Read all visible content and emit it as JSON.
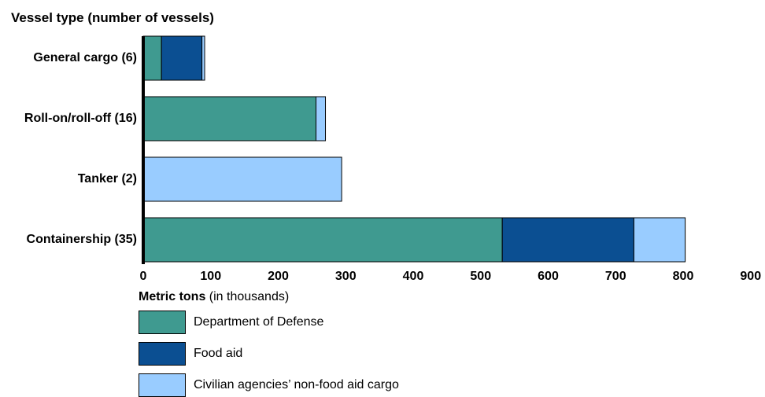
{
  "chart_data": {
    "type": "bar",
    "orientation": "horizontal",
    "stacked": true,
    "y_title": "Vessel type (number of vessels)",
    "x_title_bold": "Metric tons",
    "x_title_rest": " (in thousands)",
    "xlim": [
      0,
      900
    ],
    "xticks": [
      "0",
      "100",
      "200",
      "300",
      "400",
      "500",
      "600",
      "700",
      "800",
      "900"
    ],
    "categories": [
      "General cargo (6)",
      "Roll-on/roll-off (16)",
      "Tanker (2)",
      "Containership (35)"
    ],
    "series": [
      {
        "name": "Department of Defense",
        "color": "#3f9a90",
        "values": [
          27,
          256,
          0,
          532
        ]
      },
      {
        "name": "Food aid",
        "color": "#0b4f92",
        "values": [
          60,
          0,
          0,
          195
        ]
      },
      {
        "name": "Civilian agencies’ non-food aid cargo",
        "color": "#99ccff",
        "values": [
          4,
          14,
          294,
          76
        ]
      }
    ],
    "grid": false,
    "legend_position": "bottom-left"
  }
}
